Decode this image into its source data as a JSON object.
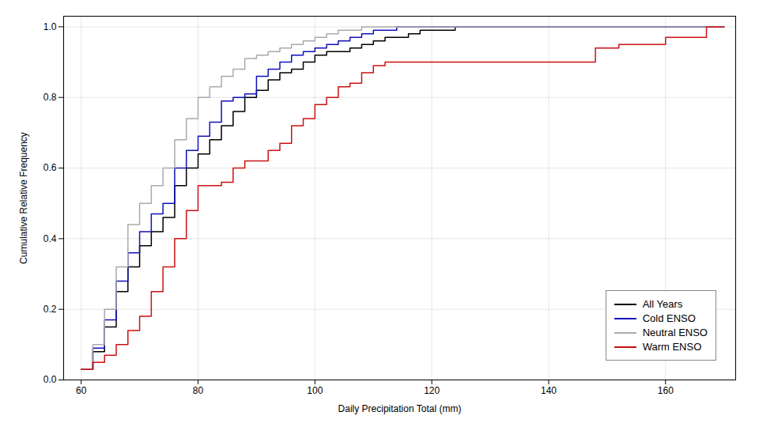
{
  "chart_data": {
    "type": "step",
    "xlabel": "Daily Precipitation Total (mm)",
    "ylabel": "Cumulative Relative Frequency",
    "xlim": [
      57,
      172
    ],
    "ylim": [
      0.0,
      1.03
    ],
    "xticks": [
      60,
      80,
      100,
      120,
      140,
      160
    ],
    "yticks": [
      {
        "value": 0.0,
        "label": "0.0"
      },
      0.2,
      0.4,
      0.6,
      0.8,
      {
        "value": 1.0,
        "label": "1.0"
      }
    ],
    "grid": true,
    "legend": "lower right",
    "series": [
      {
        "name": "All Years",
        "color": "#000000",
        "x": [
          60,
          62,
          64,
          66,
          68,
          70,
          72,
          74,
          76,
          78,
          80,
          82,
          84,
          86,
          88,
          90,
          92,
          94,
          96,
          98,
          100,
          102,
          104,
          106,
          108,
          110,
          112,
          114,
          116,
          118,
          120,
          122,
          124,
          126,
          128,
          130,
          170
        ],
        "values": [
          0.03,
          0.08,
          0.15,
          0.25,
          0.32,
          0.38,
          0.42,
          0.46,
          0.55,
          0.6,
          0.64,
          0.68,
          0.72,
          0.76,
          0.8,
          0.82,
          0.85,
          0.87,
          0.88,
          0.9,
          0.92,
          0.93,
          0.93,
          0.94,
          0.95,
          0.96,
          0.97,
          0.97,
          0.98,
          0.99,
          0.99,
          0.99,
          1.0,
          1.0,
          1.0,
          1.0,
          1.0
        ]
      },
      {
        "name": "Cold ENSO",
        "color": "#1111bb",
        "x": [
          60,
          62,
          64,
          66,
          68,
          70,
          72,
          74,
          76,
          78,
          80,
          82,
          84,
          86,
          88,
          90,
          92,
          94,
          96,
          98,
          100,
          102,
          104,
          106,
          108,
          110,
          112,
          114,
          116,
          118,
          120,
          122,
          124,
          126,
          170
        ],
        "values": [
          0.03,
          0.09,
          0.17,
          0.28,
          0.36,
          0.42,
          0.47,
          0.5,
          0.6,
          0.65,
          0.69,
          0.73,
          0.79,
          0.8,
          0.81,
          0.86,
          0.88,
          0.9,
          0.92,
          0.93,
          0.94,
          0.95,
          0.96,
          0.97,
          0.98,
          0.99,
          0.99,
          1.0,
          1.0,
          1.0,
          1.0,
          1.0,
          1.0,
          1.0,
          1.0
        ]
      },
      {
        "name": "Neutral ENSO",
        "color": "#aaaaaa",
        "x": [
          60,
          62,
          64,
          66,
          68,
          70,
          72,
          74,
          76,
          78,
          80,
          82,
          84,
          86,
          88,
          90,
          92,
          94,
          96,
          98,
          100,
          102,
          104,
          106,
          108,
          110,
          112,
          114,
          116,
          118,
          120,
          170
        ],
        "values": [
          0.03,
          0.1,
          0.2,
          0.32,
          0.44,
          0.5,
          0.55,
          0.6,
          0.68,
          0.74,
          0.8,
          0.83,
          0.86,
          0.88,
          0.91,
          0.92,
          0.93,
          0.94,
          0.95,
          0.96,
          0.97,
          0.98,
          0.99,
          0.99,
          1.0,
          1.0,
          1.0,
          1.0,
          1.0,
          1.0,
          1.0,
          1.0
        ]
      },
      {
        "name": "Warm ENSO",
        "color": "#cc1111",
        "x": [
          60,
          62,
          64,
          66,
          68,
          70,
          72,
          74,
          76,
          78,
          80,
          84,
          86,
          88,
          92,
          94,
          96,
          98,
          100,
          102,
          104,
          106,
          108,
          110,
          112,
          114,
          116,
          118,
          120,
          122,
          124,
          126,
          128,
          130,
          148,
          152,
          160,
          163,
          167,
          170
        ],
        "values": [
          0.03,
          0.05,
          0.07,
          0.1,
          0.14,
          0.18,
          0.25,
          0.32,
          0.4,
          0.48,
          0.55,
          0.56,
          0.6,
          0.62,
          0.65,
          0.67,
          0.72,
          0.74,
          0.78,
          0.8,
          0.83,
          0.84,
          0.87,
          0.89,
          0.9,
          0.9,
          0.9,
          0.9,
          0.9,
          0.9,
          0.9,
          0.9,
          0.9,
          0.9,
          0.94,
          0.95,
          0.97,
          0.97,
          1.0,
          1.0
        ]
      }
    ]
  }
}
